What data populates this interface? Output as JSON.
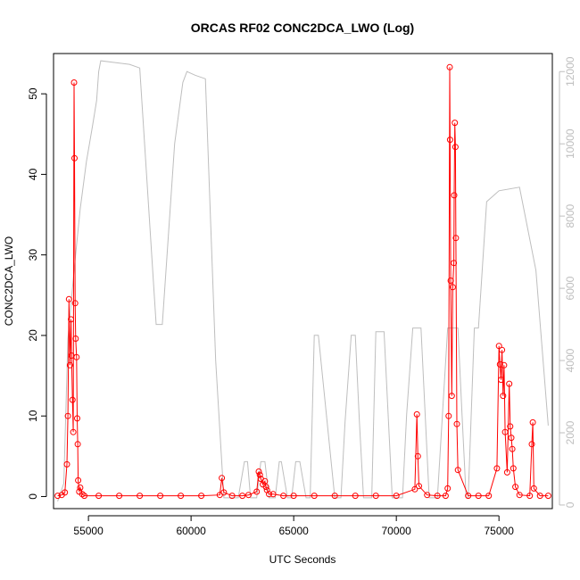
{
  "chart_data": {
    "type": "line",
    "title": "ORCAS RF02 CONC2DCA_LWO (Log)",
    "xlabel": "UTC Seconds",
    "ylabel": "CONC2DCA_LWO",
    "xlim": [
      53300,
      77600
    ],
    "ylim": [
      -1.5,
      55
    ],
    "y2lim": [
      -100,
      12500
    ],
    "x_ticks": [
      55000,
      60000,
      65000,
      70000,
      75000
    ],
    "y_ticks": [
      0,
      10,
      20,
      30,
      40,
      50
    ],
    "y2_ticks": [
      0,
      2000,
      4000,
      6000,
      8000,
      10000,
      12000
    ],
    "colors": {
      "primary": "#ff0000",
      "secondary": "#bebebe",
      "axis": "#000000"
    },
    "series": [
      {
        "axis": "left",
        "style": "line+points",
        "color": "#ff0000",
        "x": [
          53500,
          53700,
          53850,
          53950,
          54000,
          54050,
          54100,
          54150,
          54180,
          54220,
          54260,
          54300,
          54320,
          54350,
          54380,
          54420,
          54450,
          54480,
          54500,
          54550,
          54600,
          54700,
          54800,
          55500,
          56500,
          57500,
          58500,
          59500,
          60500,
          61400,
          61500,
          61600,
          62000,
          62500,
          62800,
          63200,
          63300,
          63350,
          63400,
          63500,
          63600,
          63650,
          63700,
          63800,
          64000,
          64500,
          65000,
          66000,
          67000,
          68000,
          69000,
          70000,
          70900,
          71000,
          71050,
          71100,
          71500,
          72000,
          72400,
          72500,
          72550,
          72600,
          72620,
          72650,
          72700,
          72750,
          72800,
          72820,
          72850,
          72880,
          72900,
          72950,
          73000,
          73500,
          74000,
          74500,
          74900,
          75000,
          75050,
          75100,
          75150,
          75200,
          75250,
          75300,
          75400,
          75500,
          75550,
          75600,
          75650,
          75700,
          75800,
          76000,
          76500,
          76600,
          76650,
          76700,
          77000,
          77400
        ],
        "y": [
          0.1,
          0.2,
          0.5,
          4,
          10,
          24.5,
          16.3,
          22,
          17.5,
          12,
          8,
          51.4,
          42,
          24,
          19.6,
          17.3,
          9.7,
          6.5,
          2,
          0.6,
          1.1,
          0.3,
          0.1,
          0.1,
          0.1,
          0.1,
          0.1,
          0.1,
          0.1,
          0.2,
          2.3,
          0.5,
          0.1,
          0.1,
          0.2,
          0.6,
          3.1,
          2.7,
          2.2,
          1.5,
          1.9,
          1.2,
          0.8,
          0.3,
          0.3,
          0.1,
          0.1,
          0.1,
          0.1,
          0.1,
          0.1,
          0.1,
          0.9,
          10.2,
          5,
          1.3,
          0.2,
          0.1,
          0.1,
          1,
          10,
          53.3,
          44.3,
          26.8,
          12.5,
          26,
          29,
          37.4,
          46.4,
          43.4,
          32.1,
          9,
          3.3,
          0.1,
          0.1,
          0.1,
          3.5,
          18.7,
          16.4,
          14.5,
          18.2,
          12.5,
          16.3,
          8,
          3,
          14,
          8.7,
          7.3,
          5.9,
          3.5,
          1.2,
          0.2,
          0.1,
          6.5,
          9.2,
          1,
          0.1,
          0.1
        ]
      },
      {
        "axis": "right",
        "style": "line",
        "color": "#bebebe",
        "x": [
          53500,
          53800,
          54000,
          54300,
          54600,
          54900,
          55200,
          55400,
          55500,
          55600,
          57000,
          57500,
          58300,
          58600,
          59200,
          59600,
          59800,
          60200,
          60700,
          61200,
          61600,
          62000,
          62300,
          62600,
          62750,
          62900,
          63200,
          63400,
          63600,
          63800,
          64100,
          64300,
          64400,
          64700,
          64900,
          65100,
          65300,
          65600,
          65800,
          66000,
          66200,
          67000,
          67300,
          67500,
          67800,
          68000,
          68200,
          68400,
          68800,
          69000,
          69400,
          69800,
          70300,
          70500,
          70800,
          71200,
          71600,
          72000,
          72500,
          73000,
          73200,
          73400,
          73500,
          73800,
          74000,
          74400,
          74800,
          75000,
          76000,
          76800,
          77400
        ],
        "y": [
          100,
          600,
          4600,
          6500,
          8200,
          9500,
          10500,
          11200,
          12000,
          12300,
          12200,
          12100,
          5000,
          5000,
          10000,
          11700,
          12000,
          11900,
          11800,
          4000,
          200,
          200,
          200,
          1200,
          1200,
          200,
          200,
          1200,
          1200,
          200,
          200,
          1200,
          1200,
          200,
          200,
          1200,
          1200,
          200,
          200,
          4700,
          4700,
          200,
          200,
          2300,
          4700,
          4700,
          2300,
          200,
          200,
          4800,
          4800,
          200,
          200,
          2500,
          4900,
          4900,
          200,
          200,
          4900,
          4900,
          2500,
          200,
          200,
          4900,
          4900,
          8400,
          8600,
          8700,
          8800,
          6500,
          2200
        ]
      }
    ]
  }
}
